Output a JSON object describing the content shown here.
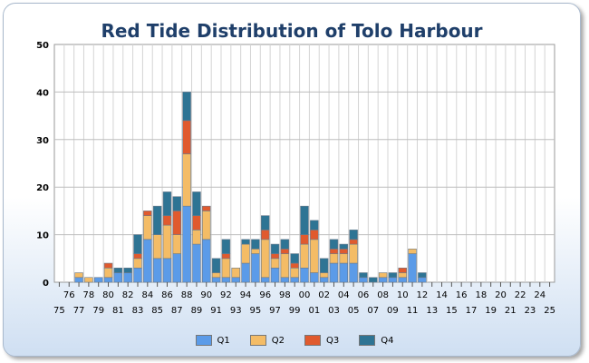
{
  "chart_data": {
    "type": "bar",
    "stacked": true,
    "title": "Red Tide Distribution of Tolo Harbour",
    "xlabel": "",
    "ylabel": "",
    "ylim": [
      0,
      50
    ],
    "yticks": [
      "0",
      "10",
      "20",
      "30",
      "40",
      "50"
    ],
    "grid": true,
    "legend_position": "bottom",
    "categories": [
      "75",
      "76",
      "77",
      "78",
      "79",
      "80",
      "81",
      "82",
      "83",
      "84",
      "85",
      "86",
      "87",
      "88",
      "89",
      "90",
      "91",
      "92",
      "93",
      "94",
      "95",
      "96",
      "97",
      "98",
      "99",
      "00",
      "01",
      "02",
      "03",
      "04",
      "05",
      "06",
      "07",
      "08",
      "09",
      "10",
      "11",
      "12",
      "13",
      "14",
      "15",
      "16",
      "17",
      "18",
      "19",
      "20",
      "21",
      "22",
      "23",
      "24",
      "25"
    ],
    "series": [
      {
        "name": "Q1",
        "color": "#5b9be8",
        "values": [
          0,
          0,
          1,
          0,
          1,
          1,
          2,
          2,
          3,
          9,
          5,
          5,
          6,
          16,
          8,
          9,
          1,
          1,
          1,
          4,
          6,
          1,
          3,
          1,
          1,
          3,
          2,
          1,
          4,
          4,
          4,
          1,
          0,
          1,
          1,
          1,
          6,
          1,
          0,
          0,
          0,
          0,
          0,
          0,
          0,
          0,
          0,
          0,
          0,
          0,
          0
        ]
      },
      {
        "name": "Q2",
        "color": "#f4bc66",
        "values": [
          0,
          0,
          1,
          1,
          0,
          2,
          0,
          0,
          2,
          5,
          5,
          7,
          4,
          11,
          3,
          6,
          1,
          4,
          2,
          4,
          1,
          8,
          2,
          5,
          2,
          5,
          7,
          1,
          2,
          2,
          4,
          0,
          0,
          1,
          0,
          1,
          1,
          0,
          0,
          0,
          0,
          0,
          0,
          0,
          0,
          0,
          0,
          0,
          0,
          0,
          0
        ]
      },
      {
        "name": "Q3",
        "color": "#e05a2e",
        "values": [
          0,
          0,
          0,
          0,
          0,
          1,
          0,
          0,
          1,
          1,
          0,
          2,
          5,
          7,
          3,
          1,
          0,
          1,
          0,
          0,
          0,
          2,
          1,
          1,
          1,
          2,
          2,
          0,
          1,
          1,
          1,
          0,
          0,
          0,
          0,
          1,
          0,
          0,
          0,
          0,
          0,
          0,
          0,
          0,
          0,
          0,
          0,
          0,
          0,
          0,
          0
        ]
      },
      {
        "name": "Q4",
        "color": "#2e7494",
        "values": [
          0,
          0,
          0,
          0,
          0,
          0,
          1,
          1,
          4,
          0,
          6,
          5,
          3,
          6,
          5,
          0,
          3,
          3,
          0,
          1,
          2,
          3,
          2,
          2,
          2,
          6,
          2,
          3,
          2,
          1,
          2,
          1,
          1,
          0,
          1,
          0,
          0,
          1,
          0,
          0,
          0,
          0,
          0,
          0,
          0,
          0,
          0,
          0,
          0,
          0,
          0
        ]
      }
    ]
  }
}
